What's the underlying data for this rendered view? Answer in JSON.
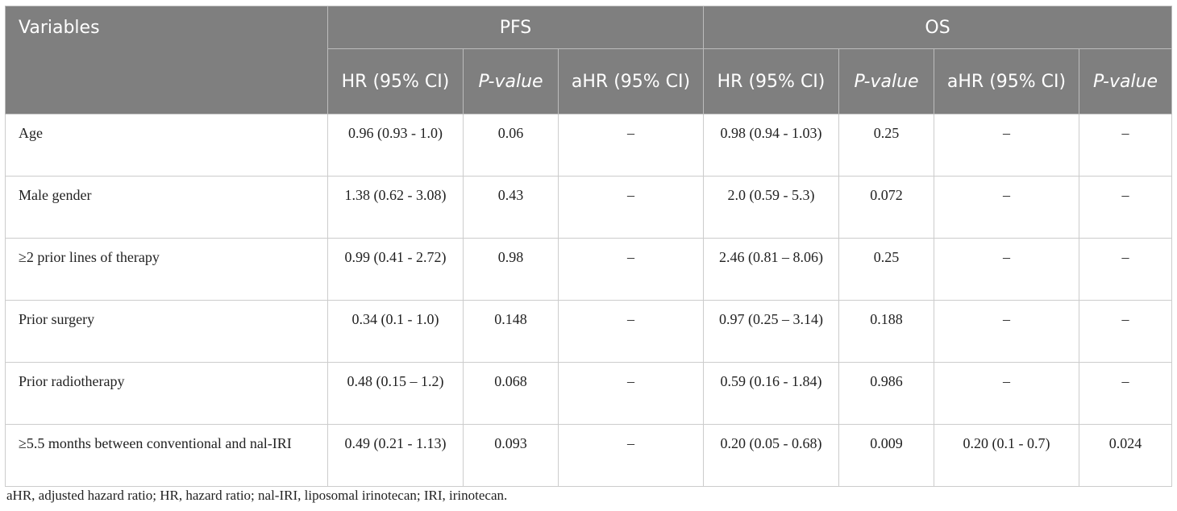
{
  "table": {
    "header": {
      "variables": "Variables",
      "pfs": "PFS",
      "os": "OS",
      "pfs_hr": "HR (95% CI)",
      "pfs_p": "P-value",
      "pfs_ahr": "aHR (95% CI)",
      "os_hr": "HR (95% CI)",
      "os_p": "P-value",
      "os_ahr": "aHR (95% CI)",
      "os_ap": "P-value"
    },
    "rows": [
      {
        "variable": "Age",
        "pfs_hr": "0.96 (0.93 - 1.0)",
        "pfs_p": "0.06",
        "pfs_ahr": "–",
        "os_hr": "0.98 (0.94 - 1.03)",
        "os_p": "0.25",
        "os_ahr": "–",
        "os_ap": "–"
      },
      {
        "variable": "Male gender",
        "pfs_hr": "1.38 (0.62 - 3.08)",
        "pfs_p": "0.43",
        "pfs_ahr": "–",
        "os_hr": "2.0 (0.59 - 5.3)",
        "os_p": "0.072",
        "os_ahr": "–",
        "os_ap": "–"
      },
      {
        "variable": "≥2 prior lines of therapy",
        "pfs_hr": "0.99 (0.41 - 2.72)",
        "pfs_p": "0.98",
        "pfs_ahr": "–",
        "os_hr": "2.46 (0.81 – 8.06)",
        "os_p": "0.25",
        "os_ahr": "–",
        "os_ap": "–"
      },
      {
        "variable": "Prior surgery",
        "pfs_hr": "0.34 (0.1 - 1.0)",
        "pfs_p": "0.148",
        "pfs_ahr": "–",
        "os_hr": "0.97 (0.25 – 3.14)",
        "os_p": "0.188",
        "os_ahr": "–",
        "os_ap": "–"
      },
      {
        "variable": "Prior radiotherapy",
        "pfs_hr": "0.48 (0.15 – 1.2)",
        "pfs_p": "0.068",
        "pfs_ahr": "–",
        "os_hr": "0.59 (0.16 - 1.84)",
        "os_p": "0.986",
        "os_ahr": "–",
        "os_ap": "–"
      },
      {
        "variable": "≥5.5 months between conventional and nal-IRI",
        "pfs_hr": "0.49 (0.21 - 1.13)",
        "pfs_p": "0.093",
        "pfs_ahr": "–",
        "os_hr": "0.20 (0.05 - 0.68)",
        "os_p": "0.009",
        "os_ahr": "0.20 (0.1 - 0.7)",
        "os_ap": "0.024"
      }
    ]
  },
  "footnote": "aHR, adjusted hazard ratio; HR, hazard ratio; nal-IRI, liposomal irinotecan; IRI, irinotecan."
}
